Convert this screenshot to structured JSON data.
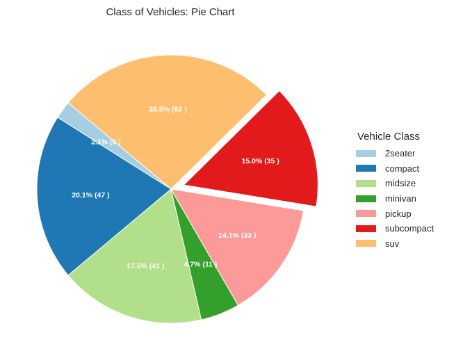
{
  "chart_data": {
    "type": "pie",
    "title": "Class of Vehicles: Pie Chart",
    "legend_title": "Vehicle Class",
    "legend_position": "right",
    "categories": [
      "2seater",
      "compact",
      "midsize",
      "minivan",
      "pickup",
      "subcompact",
      "suv"
    ],
    "values": [
      5,
      47,
      41,
      11,
      33,
      35,
      62
    ],
    "percentages": [
      2.1,
      20.1,
      17.5,
      4.7,
      14.1,
      15.0,
      26.5
    ],
    "labels": [
      "2.1% (5 )",
      "20.1% (47 )",
      "17.5% (41 )",
      "4.7% (11 )",
      "14.1% (33 )",
      "15.0% (35 )",
      "26.5% (62 )"
    ],
    "colors": [
      "#a6cee3",
      "#1f78b4",
      "#b2df8a",
      "#33a02c",
      "#fb9a99",
      "#e31a1c",
      "#fdbf6f"
    ],
    "explode": [
      0,
      0,
      0,
      0,
      0,
      0.1,
      0
    ],
    "startangle": 140
  }
}
